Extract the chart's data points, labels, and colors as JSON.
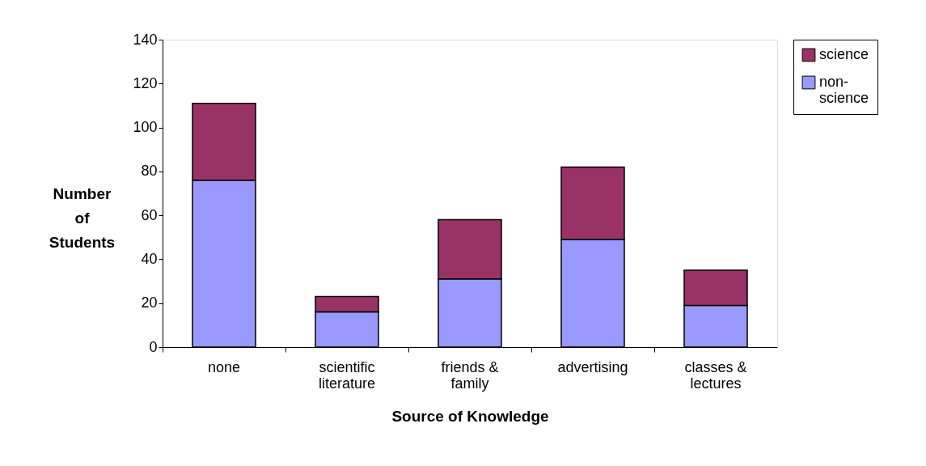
{
  "chart_data": {
    "type": "bar",
    "stacked": true,
    "xlabel": "Source of Knowledge",
    "ylabel": "Number of Students",
    "categories": [
      "none",
      "scientific literature",
      "friends & family",
      "advertising",
      "classes & lectures"
    ],
    "series": [
      {
        "name": "non-science",
        "color": "#9999ff",
        "values": [
          76,
          16,
          31,
          49,
          19
        ]
      },
      {
        "name": "science",
        "color": "#993366",
        "values": [
          35,
          7,
          27,
          33,
          16
        ]
      }
    ],
    "ylim": [
      0,
      140
    ],
    "yticks": [
      0,
      20,
      40,
      60,
      80,
      100,
      120,
      140
    ],
    "grid": false,
    "legend": "right"
  }
}
